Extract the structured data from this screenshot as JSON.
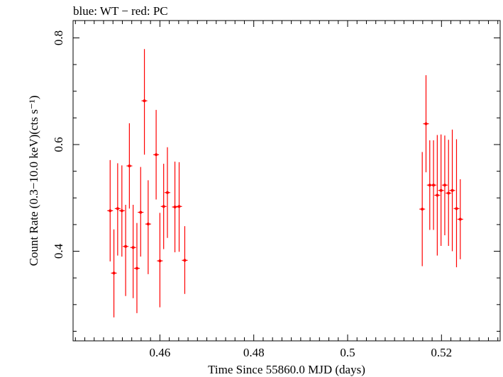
{
  "chart_data": {
    "type": "scatter",
    "title": "blue: WT − red: PC",
    "xlabel": "Time Since 55860.0 MJD (days)",
    "ylabel": "Count Rate (0.3−10.0 keV)(cts s⁻¹)",
    "xlim": [
      0.4415,
      0.5325
    ],
    "ylim": [
      0.232,
      0.8325
    ],
    "xticks": [
      0.46,
      0.48,
      0.5,
      0.52
    ],
    "xtick_labels": [
      "0.46",
      "0.48",
      "0.5",
      "0.52"
    ],
    "yticks": [
      0.4,
      0.6,
      0.8
    ],
    "ytick_labels": [
      "0.4",
      "0.6",
      "0.8"
    ],
    "grid": false,
    "series": [
      {
        "color": "#ff0000",
        "points": [
          {
            "x": 0.4494,
            "y": 0.476,
            "ylo": 0.381,
            "yhi": 0.571
          },
          {
            "x": 0.4502,
            "y": 0.359,
            "ylo": 0.276,
            "yhi": 0.441
          },
          {
            "x": 0.451,
            "y": 0.48,
            "ylo": 0.392,
            "yhi": 0.565
          },
          {
            "x": 0.4519,
            "y": 0.476,
            "ylo": 0.39,
            "yhi": 0.561
          },
          {
            "x": 0.4527,
            "y": 0.409,
            "ylo": 0.316,
            "yhi": 0.487
          },
          {
            "x": 0.4535,
            "y": 0.56,
            "ylo": 0.48,
            "yhi": 0.64
          },
          {
            "x": 0.4543,
            "y": 0.407,
            "ylo": 0.312,
            "yhi": 0.487
          },
          {
            "x": 0.4551,
            "y": 0.368,
            "ylo": 0.284,
            "yhi": 0.453
          },
          {
            "x": 0.4559,
            "y": 0.473,
            "ylo": 0.39,
            "yhi": 0.558
          },
          {
            "x": 0.4567,
            "y": 0.682,
            "ylo": 0.581,
            "yhi": 0.779
          },
          {
            "x": 0.4575,
            "y": 0.451,
            "ylo": 0.357,
            "yhi": 0.533
          },
          {
            "x": 0.4592,
            "y": 0.581,
            "ylo": 0.497,
            "yhi": 0.665
          },
          {
            "x": 0.46,
            "y": 0.382,
            "ylo": 0.295,
            "yhi": 0.472
          },
          {
            "x": 0.4608,
            "y": 0.484,
            "ylo": 0.404,
            "yhi": 0.564
          },
          {
            "x": 0.4616,
            "y": 0.51,
            "ylo": 0.425,
            "yhi": 0.595
          },
          {
            "x": 0.4632,
            "y": 0.483,
            "ylo": 0.398,
            "yhi": 0.568
          },
          {
            "x": 0.4641,
            "y": 0.484,
            "ylo": 0.399,
            "yhi": 0.567
          },
          {
            "x": 0.4653,
            "y": 0.383,
            "ylo": 0.32,
            "yhi": 0.447
          },
          {
            "x": 0.5159,
            "y": 0.479,
            "ylo": 0.372,
            "yhi": 0.586
          },
          {
            "x": 0.5167,
            "y": 0.639,
            "ylo": 0.548,
            "yhi": 0.73
          },
          {
            "x": 0.5175,
            "y": 0.524,
            "ylo": 0.44,
            "yhi": 0.608
          },
          {
            "x": 0.5183,
            "y": 0.524,
            "ylo": 0.44,
            "yhi": 0.608
          },
          {
            "x": 0.5191,
            "y": 0.505,
            "ylo": 0.392,
            "yhi": 0.618
          },
          {
            "x": 0.5199,
            "y": 0.514,
            "ylo": 0.41,
            "yhi": 0.619
          },
          {
            "x": 0.5207,
            "y": 0.524,
            "ylo": 0.43,
            "yhi": 0.617
          },
          {
            "x": 0.5215,
            "y": 0.509,
            "ylo": 0.41,
            "yhi": 0.609
          },
          {
            "x": 0.5223,
            "y": 0.514,
            "ylo": 0.4,
            "yhi": 0.628
          },
          {
            "x": 0.5232,
            "y": 0.48,
            "ylo": 0.37,
            "yhi": 0.61
          },
          {
            "x": 0.524,
            "y": 0.46,
            "ylo": 0.385,
            "yhi": 0.535
          }
        ]
      }
    ]
  }
}
